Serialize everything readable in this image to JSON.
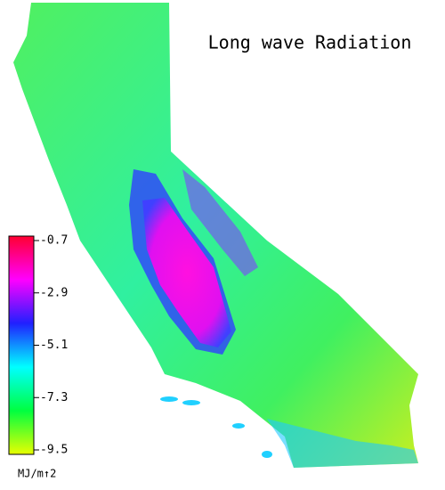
{
  "title": "Long wave Radiation",
  "colorbar": {
    "range": [
      -0.7,
      -9.5
    ],
    "ticks": [
      -0.7,
      -2.9,
      -5.1,
      -7.3,
      -9.5
    ],
    "unit": "MJ/m↑2",
    "colors": [
      "#ff0030",
      "#ff00ff",
      "#2020ff",
      "#00ffff",
      "#00ff40",
      "#e8ff00"
    ]
  }
}
